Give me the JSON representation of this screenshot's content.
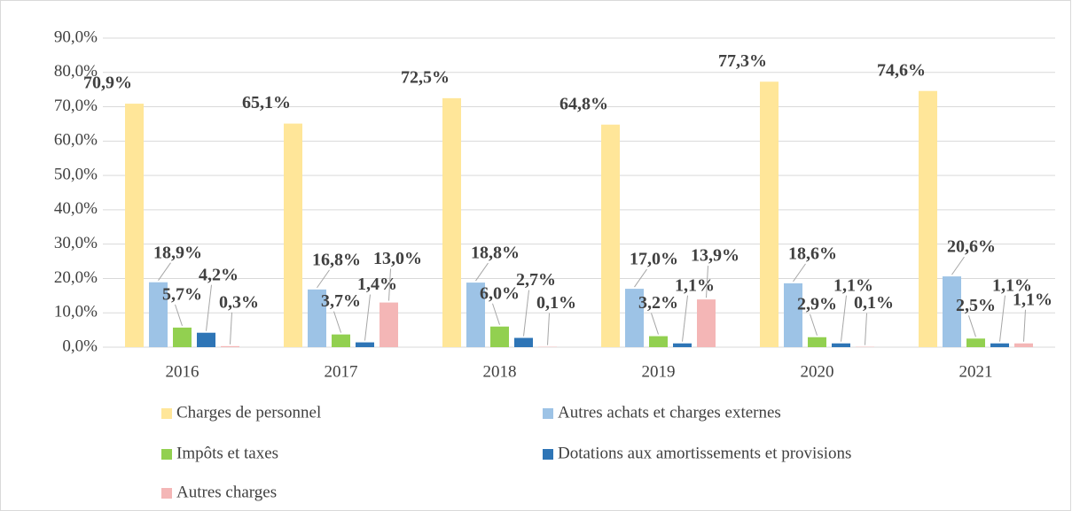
{
  "chart_data": {
    "type": "bar",
    "categories": [
      "2016",
      "2017",
      "2018",
      "2019",
      "2020",
      "2021"
    ],
    "series": [
      {
        "name": "Charges de personnel",
        "color": "#FFE699",
        "values": [
          70.9,
          65.1,
          72.5,
          64.8,
          77.3,
          74.6
        ],
        "value_labels": [
          "70,9%",
          "65,1%",
          "72,5%",
          "64,8%",
          "77,3%",
          "74,6%"
        ]
      },
      {
        "name": "Autres achats et charges externes",
        "color": "#9DC3E6",
        "values": [
          18.9,
          16.8,
          18.8,
          17.0,
          18.6,
          20.6
        ],
        "value_labels": [
          "18,9%",
          "16,8%",
          "18,8%",
          "17,0%",
          "18,6%",
          "20,6%"
        ]
      },
      {
        "name": "Impôts et taxes",
        "color": "#92D050",
        "values": [
          5.7,
          3.7,
          6.0,
          3.2,
          2.9,
          2.5
        ],
        "value_labels": [
          "5,7%",
          "3,7%",
          "6,0%",
          "3,2%",
          "2,9%",
          "2,5%"
        ]
      },
      {
        "name": "Dotations aux amortissements et provisions",
        "color": "#2E75B6",
        "values": [
          4.2,
          1.4,
          2.7,
          1.1,
          1.1,
          1.1
        ],
        "value_labels": [
          "4,2%",
          "1,4%",
          "2,7%",
          "1,1%",
          "1,1%",
          "1,1%"
        ]
      },
      {
        "name": "Autres charges",
        "color": "#F4B6B6",
        "values": [
          0.3,
          13.0,
          0.1,
          13.9,
          0.1,
          1.1
        ],
        "value_labels": [
          "0,3%",
          "13,0%",
          "0,1%",
          "13,9%",
          "0,1%",
          "1,1%"
        ]
      }
    ],
    "ylim": [
      0,
      90
    ],
    "yticks": [
      {
        "value": 0,
        "label": "0,0%"
      },
      {
        "value": 10,
        "label": "10,0%"
      },
      {
        "value": 20,
        "label": "20,0%"
      },
      {
        "value": 30,
        "label": "30,0%"
      },
      {
        "value": 40,
        "label": "40,0%"
      },
      {
        "value": 50,
        "label": "50,0%"
      },
      {
        "value": 60,
        "label": "60,0%"
      },
      {
        "value": 70,
        "label": "70,0%"
      },
      {
        "value": 80,
        "label": "80,0%"
      },
      {
        "value": 90,
        "label": "90,0%"
      }
    ],
    "grid": true,
    "legend": "bottom"
  }
}
